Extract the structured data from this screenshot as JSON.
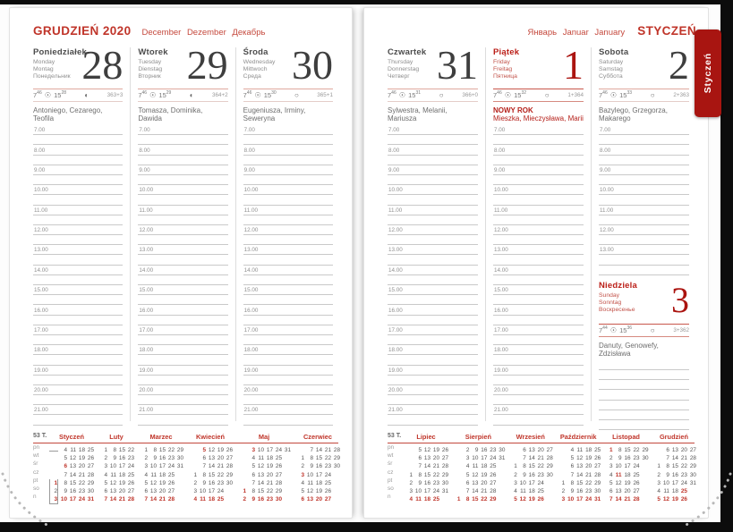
{
  "icons": {
    "sun": "☉"
  },
  "colors": {
    "accent_red": "#c0352a",
    "tab_red": "#a81511",
    "big_number": "#3e3e3e"
  },
  "tab": {
    "label": "Styczeń"
  },
  "hours_full": [
    "7.00",
    "8.00",
    "9.00",
    "10.00",
    "11.00",
    "12.00",
    "13.00",
    "14.00",
    "15.00",
    "16.00",
    "17.00",
    "18.00",
    "19.00",
    "20.00",
    "21.00"
  ],
  "hours_short": [
    "7.00",
    "8.00",
    "9.00",
    "10.00",
    "11.00",
    "12.00",
    "13.00"
  ],
  "left_page": {
    "title": "GRUDZIEŃ 2020",
    "subtitle": "December Dezember Декабрь",
    "days": [
      {
        "name": "Poniedziałek",
        "red": false,
        "intl": [
          "Monday",
          "Montag",
          "Понедельник"
        ],
        "num": "28",
        "num_red": false,
        "rise": [
          "7",
          "46"
        ],
        "set": [
          "15",
          "28"
        ],
        "moon": "◐",
        "doy": "363+3",
        "holiday": "",
        "names": "Antoniego, Cezarego, Teofila",
        "names_red": false
      },
      {
        "name": "Wtorek",
        "red": false,
        "intl": [
          "Tuesday",
          "Dienstag",
          "Вторник"
        ],
        "num": "29",
        "num_red": false,
        "rise": [
          "7",
          "46"
        ],
        "set": [
          "15",
          "29"
        ],
        "moon": "◐",
        "doy": "364+2",
        "holiday": "",
        "names": "Tomasza, Dominika, Dawida",
        "names_red": false
      },
      {
        "name": "Środa",
        "red": false,
        "intl": [
          "Wednesday",
          "Mittwoch",
          "Среда"
        ],
        "num": "30",
        "num_red": false,
        "rise": [
          "7",
          "46"
        ],
        "set": [
          "15",
          "30"
        ],
        "moon": "○",
        "doy": "365+1",
        "holiday": "",
        "names": "Eugeniusza, Irminy, Seweryna",
        "names_red": false
      }
    ],
    "minical": {
      "week_label": "53 T.",
      "weekdays": [
        "pn",
        "wt",
        "śr",
        "cz",
        "pt",
        "so",
        "n"
      ],
      "months": [
        {
          "name": "Styczeń",
          "box_col": 0,
          "holidays": [
            1,
            6
          ],
          "rows": [
            [
              "",
              "4",
              "11",
              "18",
              "25"
            ],
            [
              "",
              "5",
              "12",
              "19",
              "26"
            ],
            [
              "",
              "6",
              "13",
              "20",
              "27"
            ],
            [
              "",
              "7",
              "14",
              "21",
              "28"
            ],
            [
              "1",
              "8",
              "15",
              "22",
              "29"
            ],
            [
              "2",
              "9",
              "16",
              "23",
              "30"
            ],
            [
              "3",
              "10",
              "17",
              "24",
              "31"
            ]
          ]
        },
        {
          "name": "Luty",
          "holidays": [],
          "rows": [
            [
              "1",
              "8",
              "15",
              "22"
            ],
            [
              "2",
              "9",
              "16",
              "23"
            ],
            [
              "3",
              "10",
              "17",
              "24"
            ],
            [
              "4",
              "11",
              "18",
              "25"
            ],
            [
              "5",
              "12",
              "19",
              "26"
            ],
            [
              "6",
              "13",
              "20",
              "27"
            ],
            [
              "7",
              "14",
              "21",
              "28"
            ]
          ]
        },
        {
          "name": "Marzec",
          "holidays": [],
          "rows": [
            [
              "1",
              "8",
              "15",
              "22",
              "29"
            ],
            [
              "2",
              "9",
              "16",
              "23",
              "30"
            ],
            [
              "3",
              "10",
              "17",
              "24",
              "31"
            ],
            [
              "4",
              "11",
              "18",
              "25",
              ""
            ],
            [
              "5",
              "12",
              "19",
              "26",
              ""
            ],
            [
              "6",
              "13",
              "20",
              "27",
              ""
            ],
            [
              "7",
              "14",
              "21",
              "28",
              ""
            ]
          ]
        },
        {
          "name": "Kwiecień",
          "holidays": [
            4,
            5
          ],
          "rows": [
            [
              "",
              "5",
              "12",
              "19",
              "26"
            ],
            [
              "",
              "6",
              "13",
              "20",
              "27"
            ],
            [
              "",
              "7",
              "14",
              "21",
              "28"
            ],
            [
              "1",
              "8",
              "15",
              "22",
              "29"
            ],
            [
              "2",
              "9",
              "16",
              "23",
              "30"
            ],
            [
              "3",
              "10",
              "17",
              "24",
              ""
            ],
            [
              "4",
              "11",
              "18",
              "25",
              ""
            ]
          ]
        },
        {
          "name": "Maj",
          "holidays": [
            1,
            3
          ],
          "rows": [
            [
              "",
              "3",
              "10",
              "17",
              "24",
              "31"
            ],
            [
              "",
              "4",
              "11",
              "18",
              "25",
              ""
            ],
            [
              "",
              "5",
              "12",
              "19",
              "26",
              ""
            ],
            [
              "",
              "6",
              "13",
              "20",
              "27",
              ""
            ],
            [
              "",
              "7",
              "14",
              "21",
              "28",
              ""
            ],
            [
              "1",
              "8",
              "15",
              "22",
              "29",
              ""
            ],
            [
              "2",
              "9",
              "16",
              "23",
              "30",
              ""
            ]
          ]
        },
        {
          "name": "Czerwiec",
          "holidays": [
            3
          ],
          "rows": [
            [
              "",
              "7",
              "14",
              "21",
              "28"
            ],
            [
              "1",
              "8",
              "15",
              "22",
              "29"
            ],
            [
              "2",
              "9",
              "16",
              "23",
              "30"
            ],
            [
              "3",
              "10",
              "17",
              "24",
              ""
            ],
            [
              "4",
              "11",
              "18",
              "25",
              ""
            ],
            [
              "5",
              "12",
              "19",
              "26",
              ""
            ],
            [
              "6",
              "13",
              "20",
              "27",
              ""
            ]
          ]
        }
      ]
    }
  },
  "right_page": {
    "subtitle": "Январь Januar January",
    "title": "STYCZEŃ",
    "days": [
      {
        "name": "Czwartek",
        "red": false,
        "intl": [
          "Thursday",
          "Donnerstag",
          "Четверг"
        ],
        "num": "31",
        "num_red": false,
        "rise": [
          "7",
          "46"
        ],
        "set": [
          "15",
          "31"
        ],
        "moon": "○",
        "doy": "366+0",
        "holiday": "",
        "names": "Sylwestra, Melanii, Mariusza",
        "names_red": false
      },
      {
        "name": "Piątek",
        "red": true,
        "intl": [
          "Friday",
          "Freitag",
          "Пятница"
        ],
        "num": "1",
        "num_red": true,
        "rise": [
          "7",
          "46"
        ],
        "set": [
          "15",
          "32"
        ],
        "moon": "○",
        "doy": "1+364",
        "holiday": "NOWY ROK",
        "names": "Mieszka, Mieczysława, Marii",
        "names_red": true
      },
      {
        "name": "Sobota",
        "red": false,
        "intl": [
          "Saturday",
          "Samstag",
          "Суббота"
        ],
        "num": "2",
        "num_red": false,
        "rise": [
          "7",
          "46"
        ],
        "set": [
          "15",
          "33"
        ],
        "moon": "○",
        "doy": "2+363",
        "holiday": "",
        "names": "Bazylego, Grzegorza, Makarego",
        "names_red": false,
        "short": true
      }
    ],
    "sunday": {
      "name": "Niedziela",
      "red": true,
      "intl": [
        "Sunday",
        "Sonntag",
        "Воскресенье"
      ],
      "num": "3",
      "num_red": true,
      "rise": [
        "7",
        "44"
      ],
      "set": [
        "15",
        "36"
      ],
      "moon": "○",
      "doy": "3+362",
      "holiday": "",
      "names": "Danuty, Genowefy, Zdzisława",
      "names_red": false
    },
    "minical": {
      "week_label": "53 T.",
      "weekdays": [
        "pn",
        "wt",
        "śr",
        "cz",
        "pt",
        "so",
        "n"
      ],
      "months": [
        {
          "name": "Lipiec",
          "holidays": [],
          "rows": [
            [
              "",
              "5",
              "12",
              "19",
              "26"
            ],
            [
              "",
              "6",
              "13",
              "20",
              "27"
            ],
            [
              "",
              "7",
              "14",
              "21",
              "28"
            ],
            [
              "1",
              "8",
              "15",
              "22",
              "29"
            ],
            [
              "2",
              "9",
              "16",
              "23",
              "30"
            ],
            [
              "3",
              "10",
              "17",
              "24",
              "31"
            ],
            [
              "4",
              "11",
              "18",
              "25",
              ""
            ]
          ]
        },
        {
          "name": "Sierpień",
          "holidays": [
            15
          ],
          "rows": [
            [
              "",
              "2",
              "9",
              "16",
              "23",
              "30"
            ],
            [
              "",
              "3",
              "10",
              "17",
              "24",
              "31"
            ],
            [
              "",
              "4",
              "11",
              "18",
              "25",
              ""
            ],
            [
              "",
              "5",
              "12",
              "19",
              "26",
              ""
            ],
            [
              "",
              "6",
              "13",
              "20",
              "27",
              ""
            ],
            [
              "",
              "7",
              "14",
              "21",
              "28",
              ""
            ],
            [
              "1",
              "8",
              "15",
              "22",
              "29",
              ""
            ]
          ]
        },
        {
          "name": "Wrzesień",
          "holidays": [],
          "rows": [
            [
              "",
              "6",
              "13",
              "20",
              "27"
            ],
            [
              "",
              "7",
              "14",
              "21",
              "28"
            ],
            [
              "1",
              "8",
              "15",
              "22",
              "29"
            ],
            [
              "2",
              "9",
              "16",
              "23",
              "30"
            ],
            [
              "3",
              "10",
              "17",
              "24",
              ""
            ],
            [
              "4",
              "11",
              "18",
              "25",
              ""
            ],
            [
              "5",
              "12",
              "19",
              "26",
              ""
            ]
          ]
        },
        {
          "name": "Październik",
          "holidays": [],
          "rows": [
            [
              "",
              "4",
              "11",
              "18",
              "25"
            ],
            [
              "",
              "5",
              "12",
              "19",
              "26"
            ],
            [
              "",
              "6",
              "13",
              "20",
              "27"
            ],
            [
              "",
              "7",
              "14",
              "21",
              "28"
            ],
            [
              "1",
              "8",
              "15",
              "22",
              "29"
            ],
            [
              "2",
              "9",
              "16",
              "23",
              "30"
            ],
            [
              "3",
              "10",
              "17",
              "24",
              "31"
            ]
          ]
        },
        {
          "name": "Listopad",
          "holidays": [
            1,
            11
          ],
          "rows": [
            [
              "1",
              "8",
              "15",
              "22",
              "29"
            ],
            [
              "2",
              "9",
              "16",
              "23",
              "30"
            ],
            [
              "3",
              "10",
              "17",
              "24",
              ""
            ],
            [
              "4",
              "11",
              "18",
              "25",
              ""
            ],
            [
              "5",
              "12",
              "19",
              "26",
              ""
            ],
            [
              "6",
              "13",
              "20",
              "27",
              ""
            ],
            [
              "7",
              "14",
              "21",
              "28",
              ""
            ]
          ]
        },
        {
          "name": "Grudzień",
          "holidays": [
            25,
            26
          ],
          "rows": [
            [
              "",
              "6",
              "13",
              "20",
              "27"
            ],
            [
              "",
              "7",
              "14",
              "21",
              "28"
            ],
            [
              "1",
              "8",
              "15",
              "22",
              "29"
            ],
            [
              "2",
              "9",
              "16",
              "23",
              "30"
            ],
            [
              "3",
              "10",
              "17",
              "24",
              "31"
            ],
            [
              "4",
              "11",
              "18",
              "25",
              ""
            ],
            [
              "5",
              "12",
              "19",
              "26",
              ""
            ]
          ]
        }
      ]
    }
  }
}
